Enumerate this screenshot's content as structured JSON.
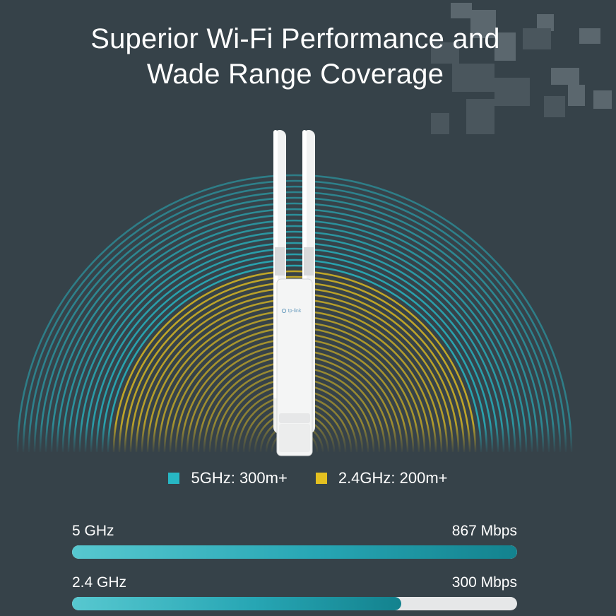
{
  "title": {
    "line1": "Superior Wi-Fi Performance and",
    "line2": "Wade Range Coverage"
  },
  "device": {
    "brand": "tp-link",
    "icon": "access-point-icon"
  },
  "legend": [
    {
      "label": "5GHz: 300m+",
      "color": "#27b7c4"
    },
    {
      "label": "2.4GHz: 200m+",
      "color": "#e4c020"
    }
  ],
  "speeds": [
    {
      "band": "5 GHz",
      "rate": "867 Mbps",
      "fill_fraction": 1.0
    },
    {
      "band": "2.4 GHz",
      "rate": "300 Mbps",
      "fill_fraction": 0.74
    }
  ],
  "colors": {
    "background": "#364249",
    "band_5ghz": "#27b7c4",
    "band_24ghz": "#e4c020",
    "bar_track": "#e6e7e8"
  }
}
